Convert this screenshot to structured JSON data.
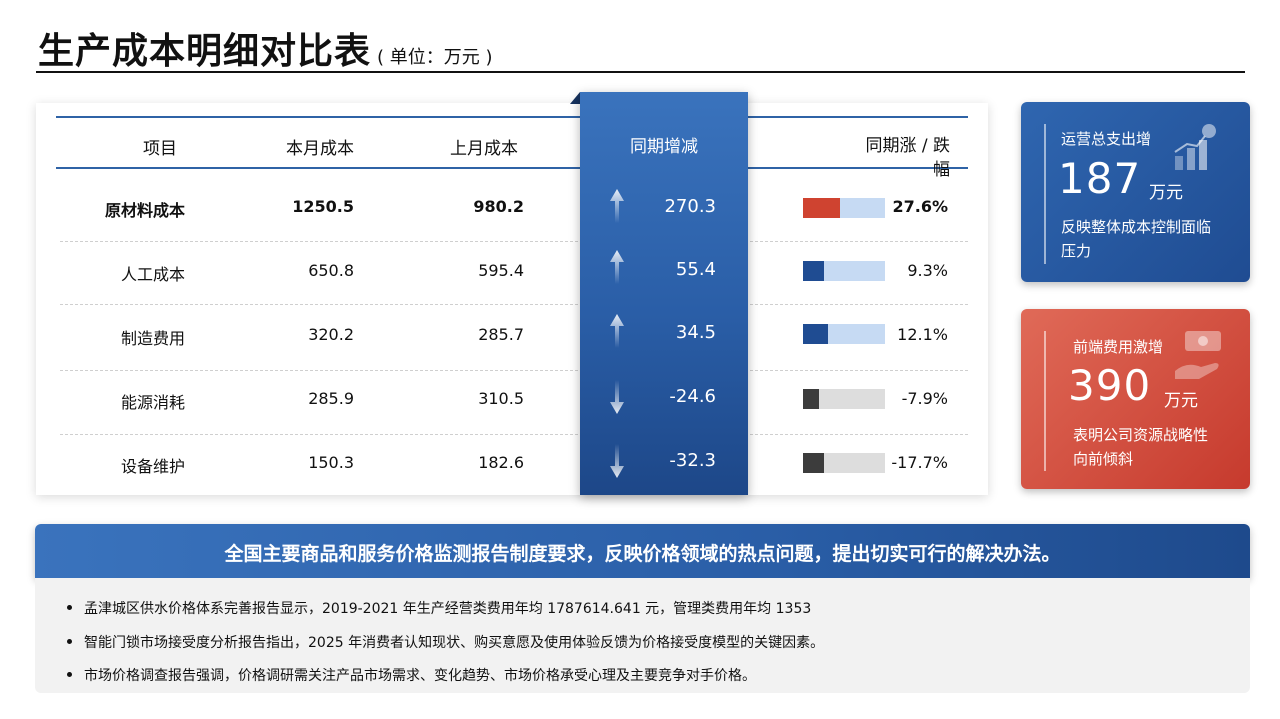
{
  "title": "生产成本明细对比表",
  "unit": "( 单位：万元 )",
  "table": {
    "headers": [
      "项目",
      "本月成本",
      "上月成本",
      "同期增减",
      "同期涨 / 跌幅"
    ],
    "rows": [
      {
        "item": "原材料成本",
        "this_month": "1250.5",
        "last_month": "980.2",
        "change": "270.3",
        "pct": "27.6%",
        "direction": "up",
        "bar_fraction": 0.45,
        "highlight": true
      },
      {
        "item": "人工成本",
        "this_month": "650.8",
        "last_month": "595.4",
        "change": "55.4",
        "pct": "9.3%",
        "direction": "up",
        "bar_fraction": 0.25,
        "highlight": false
      },
      {
        "item": "制造费用",
        "this_month": "320.2",
        "last_month": "285.7",
        "change": "34.5",
        "pct": "12.1%",
        "direction": "up",
        "bar_fraction": 0.3,
        "highlight": false
      },
      {
        "item": "能源消耗",
        "this_month": "285.9",
        "last_month": "310.5",
        "change": "-24.6",
        "pct": "-7.9%",
        "direction": "down",
        "bar_fraction": 0.2,
        "highlight": false
      },
      {
        "item": "设备维护",
        "this_month": "150.3",
        "last_month": "182.6",
        "change": "-32.3",
        "pct": "-17.7%",
        "direction": "down",
        "bar_fraction": 0.25,
        "highlight": false
      }
    ]
  },
  "kpi_blue": {
    "label": "运营总支出增",
    "value": "187",
    "unit": "万元",
    "desc": "反映整体成本控制面临压力",
    "icon": "growth-chart-icon"
  },
  "kpi_red": {
    "label": "前端费用激增",
    "value": "390",
    "unit": "万元",
    "desc": "表明公司资源战略性向前倾斜",
    "icon": "money-hand-icon"
  },
  "banner": "全国主要商品和服务价格监测报告制度要求，反映价格领域的热点问题，提出切实可行的解决办法。",
  "notes": [
    "孟津城区供水价格体系完善报告显示，2019-2021 年生产经营类费用年均 1787614.641 元，管理类费用年均 1353",
    "智能门锁市场接受度分析报告指出，2025 年消费者认知现状、购买意愿及使用体验反馈为价格接受度模型的关键因素。",
    "市场价格调查报告强调，价格调研需关注产品市场需求、变化趋势、市场价格承受心理及主要竞争对手价格。"
  ],
  "colors": {
    "accent_blue": "#2a5ea7",
    "accent_red": "#c9432f",
    "bar_up_fill": "#1f4c92",
    "bar_up_bg": "#c6daf3",
    "bar_down_fill": "#3c3c3c",
    "bar_down_bg": "#dddddd",
    "bar_highlight_fill": "#cf4330"
  }
}
